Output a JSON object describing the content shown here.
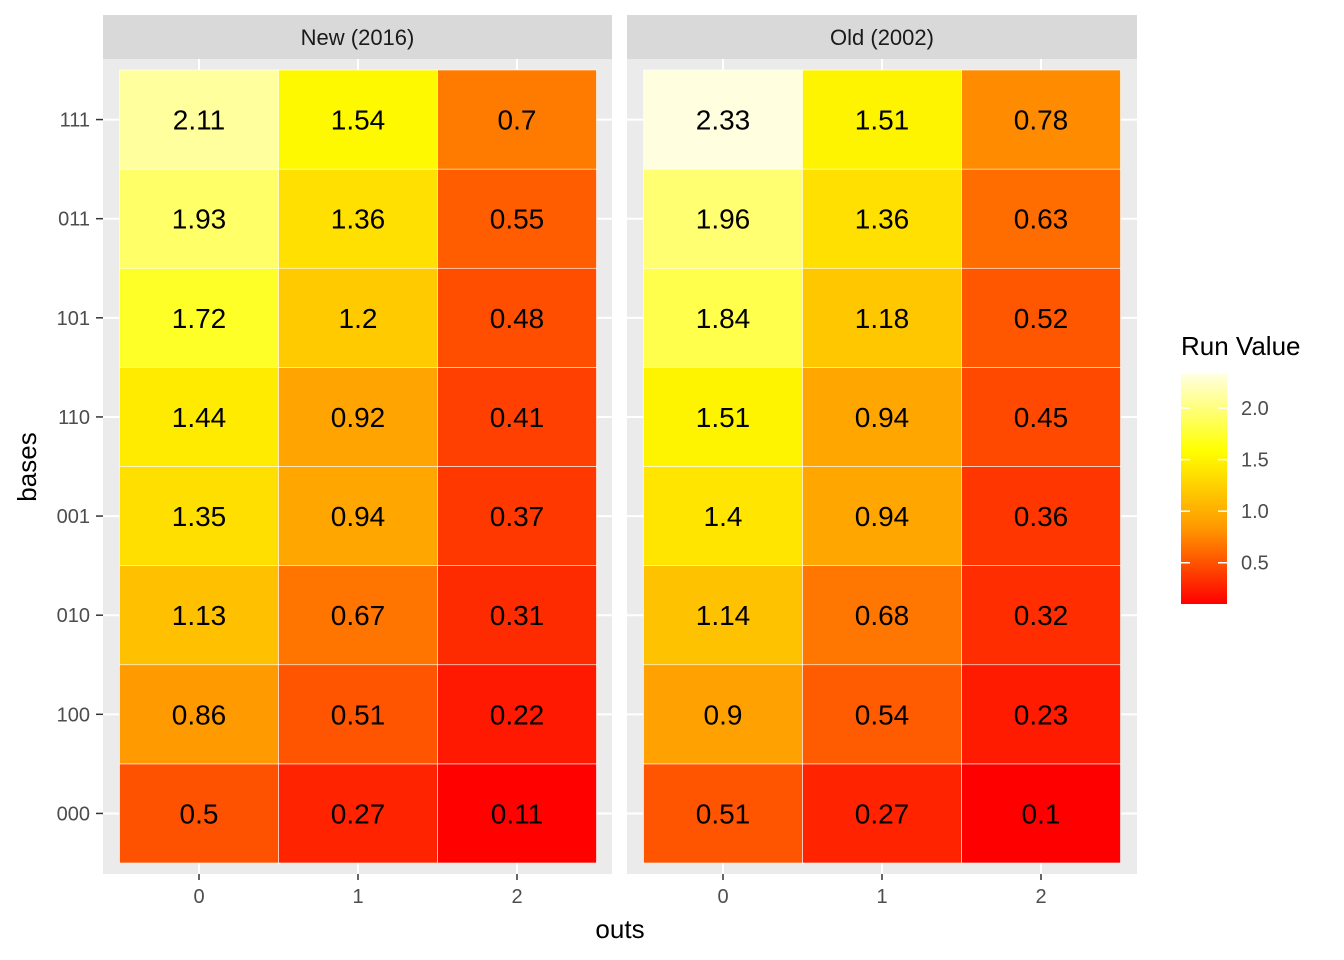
{
  "chart_data": {
    "type": "heatmap",
    "xlabel": "outs",
    "ylabel": "bases",
    "x_categories": [
      "0",
      "1",
      "2"
    ],
    "y_categories": [
      "000",
      "100",
      "010",
      "001",
      "110",
      "101",
      "011",
      "111"
    ],
    "facets": [
      {
        "label": "New (2016)",
        "values": [
          [
            0.5,
            0.27,
            0.11
          ],
          [
            0.86,
            0.51,
            0.22
          ],
          [
            1.13,
            0.67,
            0.31
          ],
          [
            1.35,
            0.94,
            0.37
          ],
          [
            1.44,
            0.92,
            0.41
          ],
          [
            1.72,
            1.2,
            0.48
          ],
          [
            1.93,
            1.36,
            0.55
          ],
          [
            2.11,
            1.54,
            0.7
          ]
        ],
        "labels": [
          [
            "0.5",
            "0.27",
            "0.11"
          ],
          [
            "0.86",
            "0.51",
            "0.22"
          ],
          [
            "1.13",
            "0.67",
            "0.31"
          ],
          [
            "1.35",
            "0.94",
            "0.37"
          ],
          [
            "1.44",
            "0.92",
            "0.41"
          ],
          [
            "1.72",
            "1.2",
            "0.48"
          ],
          [
            "1.93",
            "1.36",
            "0.55"
          ],
          [
            "2.11",
            "1.54",
            "0.7"
          ]
        ]
      },
      {
        "label": "Old (2002)",
        "values": [
          [
            0.51,
            0.27,
            0.1
          ],
          [
            0.9,
            0.54,
            0.23
          ],
          [
            1.14,
            0.68,
            0.32
          ],
          [
            1.4,
            0.94,
            0.36
          ],
          [
            1.51,
            0.94,
            0.45
          ],
          [
            1.84,
            1.18,
            0.52
          ],
          [
            1.96,
            1.36,
            0.63
          ],
          [
            2.33,
            1.51,
            0.78
          ]
        ],
        "labels": [
          [
            "0.51",
            "0.27",
            "0.1"
          ],
          [
            "0.9",
            "0.54",
            "0.23"
          ],
          [
            "1.14",
            "0.68",
            "0.32"
          ],
          [
            "1.4",
            "0.94",
            "0.36"
          ],
          [
            "1.51",
            "0.94",
            "0.45"
          ],
          [
            "1.84",
            "1.18",
            "0.52"
          ],
          [
            "1.96",
            "1.36",
            "0.63"
          ],
          [
            "2.33",
            "1.51",
            "0.78"
          ]
        ]
      }
    ],
    "legend": {
      "title": "Run Value",
      "ticks": [
        0.5,
        1.0,
        1.5,
        2.0
      ],
      "tick_labels": [
        "0.5",
        "1.0",
        "1.5",
        "2.0"
      ],
      "range": [
        0.1,
        2.33
      ],
      "placement": "right"
    },
    "colors": {
      "panel_bg": "#ebebeb",
      "strip_bg": "#d9d9d9",
      "grid": "#ffffff",
      "scale": [
        "#ff0000",
        "#ff9900",
        "#ffff00",
        "#ffffe0"
      ]
    }
  }
}
